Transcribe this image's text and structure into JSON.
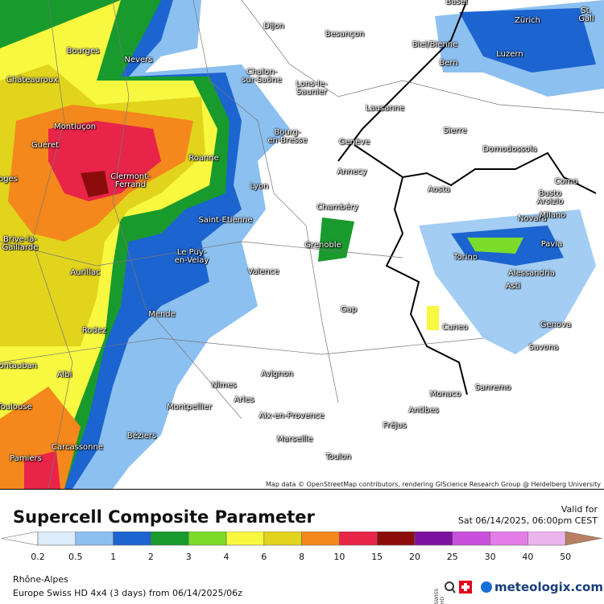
{
  "map": {
    "cities": [
      "Basel",
      "Dijon",
      "Besançon",
      "Bourges",
      "Nevers",
      "Châteauroux",
      "Chalon-\nsur-Saône",
      "Lons-le-\nSaunier",
      "Biel/Bienne",
      "Bern",
      "Zürich",
      "St. Gall",
      "Luzern",
      "Lausanne",
      "Montluçon",
      "Guéret",
      "Bourg-\nen-Bresse",
      "Genève",
      "Sierre",
      "Domodossola",
      "Roanne",
      "oges",
      "Clermont-\nFerrand",
      "Annecy",
      "Lyon",
      "Aosta",
      "Como",
      "Busto\nArsizio",
      "Chambéry",
      "Saint-Etienne",
      "Novara",
      "Milano",
      "Brive-la-\nGaillarde",
      "Grenoble",
      "Le Puy-\nen-Velay",
      "Torino",
      "Pavia",
      "Aurillac",
      "Valence",
      "Alessandria",
      "Asti",
      "Mende",
      "Gap",
      "Cuneo",
      "Genova",
      "Rodez",
      "Savona",
      "Montauban",
      "Albi",
      "Avignon",
      "Nîmes",
      "Arles",
      "Sanremo",
      "Monaco",
      "Antibes",
      "Montpellier",
      "Toulouse",
      "Aix-en-Provence",
      "Fréjus",
      "Béziers",
      "Marseille",
      "Carcassonne",
      "Pamiers",
      "Toulon"
    ],
    "attribution": "Map data © OpenStreetMap contributors, rendering GIScience Research Group @ Heidelberg University"
  },
  "legend": {
    "title": "Supercell Composite Parameter",
    "valid_label": "Valid for",
    "valid_time": "Sat 06/14/2025, 06:00pm CEST",
    "ticks": [
      0.2,
      0.5,
      1,
      2,
      3,
      4,
      6,
      8,
      10,
      15,
      20,
      25,
      30,
      40,
      50
    ],
    "colors": [
      "#dcecfa",
      "#8cc0f0",
      "#1c64d0",
      "#189a2c",
      "#7cdc2a",
      "#f8f840",
      "#e2d41c",
      "#f4881c",
      "#e82448",
      "#8c0c0c",
      "#7c10a0",
      "#c850dc",
      "#e47ce8",
      "#ecb4ec"
    ],
    "under_color": "#ffffff",
    "over_color": "#b88060"
  },
  "footer": {
    "region": "Rhône-Alpes",
    "model": "Europe Swiss HD 4x4 (3 days) from 06/14/2025/06z",
    "swiss_badge": "SWISS HD",
    "brand": "meteologix.com"
  }
}
